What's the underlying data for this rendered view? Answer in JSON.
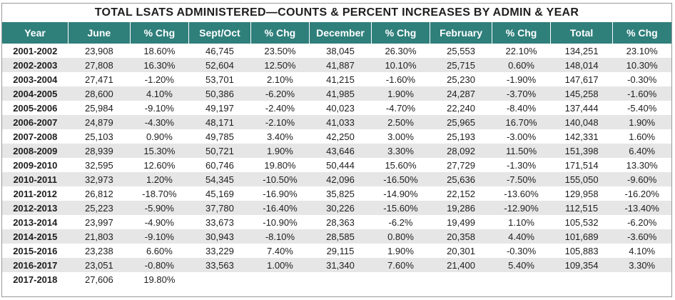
{
  "title": "TOTAL LSATS ADMINISTERED—COUNTS & PERCENT INCREASES BY ADMIN & YEAR",
  "colors": {
    "header_bg": "#2f7f7b",
    "header_text": "#ffffff",
    "stripe": "#e6e6e6"
  },
  "chart_data": {
    "type": "table",
    "title": "TOTAL LSATS ADMINISTERED—COUNTS & PERCENT INCREASES BY ADMIN & YEAR",
    "columns": [
      "Year",
      "June",
      "% Chg",
      "Sept/Oct",
      "% Chg",
      "December",
      "% Chg",
      "February",
      "% Chg",
      "Total",
      "% Chg"
    ],
    "rows": [
      [
        "2001-2002",
        "23,908",
        "18.60%",
        "46,745",
        "23.50%",
        "38,045",
        "26.30%",
        "25,553",
        "22.10%",
        "134,251",
        "23.10%"
      ],
      [
        "2002-2003",
        "27,808",
        "16.30%",
        "52,604",
        "12.50%",
        "41,887",
        "10.10%",
        "25,715",
        "0.60%",
        "148,014",
        "10.30%"
      ],
      [
        "2003-2004",
        "27,471",
        "-1.20%",
        "53,701",
        "2.10%",
        "41,215",
        "-1.60%",
        "25,230",
        "-1.90%",
        "147,617",
        "-0.30%"
      ],
      [
        "2004-2005",
        "28,600",
        "4.10%",
        "50,386",
        "-6.20%",
        "41,985",
        "1.90%",
        "24,287",
        "-3.70%",
        "145,258",
        "-1.60%"
      ],
      [
        "2005-2006",
        "25,984",
        "-9.10%",
        "49,197",
        "-2.40%",
        "40,023",
        "-4.70%",
        "22,240",
        "-8.40%",
        "137,444",
        "-5.40%"
      ],
      [
        "2006-2007",
        "24,879",
        "-4.30%",
        "48,171",
        "-2.10%",
        "41,033",
        "2.50%",
        "25,965",
        "16.70%",
        "140,048",
        "1.90%"
      ],
      [
        "2007-2008",
        "25,103",
        "0.90%",
        "49,785",
        "3.40%",
        "42,250",
        "3.00%",
        "25,193",
        "-3.00%",
        "142,331",
        "1.60%"
      ],
      [
        "2008-2009",
        "28,939",
        "15.30%",
        "50,721",
        "1.90%",
        "43,646",
        "3.30%",
        "28,092",
        "11.50%",
        "151,398",
        "6.40%"
      ],
      [
        "2009-2010",
        "32,595",
        "12.60%",
        "60,746",
        "19.80%",
        "50,444",
        "15.60%",
        "27,729",
        "-1.30%",
        "171,514",
        "13.30%"
      ],
      [
        "2010-2011",
        "32,973",
        "1.20%",
        "54,345",
        "-10.50%",
        "42,096",
        "-16.50%",
        "25,636",
        "-7.50%",
        "155,050",
        "-9.60%"
      ],
      [
        "2011-2012",
        "26,812",
        "-18.70%",
        "45,169",
        "-16.90%",
        "35,825",
        "-14.90%",
        "22,152",
        "-13.60%",
        "129,958",
        "-16.20%"
      ],
      [
        "2012-2013",
        "25,223",
        "-5.90%",
        "37,780",
        "-16.40%",
        "30,226",
        "-15.60%",
        "19,286",
        "-12.90%",
        "112,515",
        "-13.40%"
      ],
      [
        "2013-2014",
        "23,997",
        "-4.90%",
        "33,673",
        "-10.90%",
        "28,363",
        "-6.2%",
        "19,499",
        "1.10%",
        "105,532",
        "-6.20%"
      ],
      [
        "2014-2015",
        "21,803",
        "-9.10%",
        "30,943",
        "-8.10%",
        "28,585",
        "0.80%",
        "20,358",
        "4.40%",
        "101,689",
        "-3.60%"
      ],
      [
        "2015-2016",
        "23,238",
        "6.60%",
        "33,229",
        "7.40%",
        "29,115",
        "1.90%",
        "20,301",
        "-0.30%",
        "105,883",
        "4.10%"
      ],
      [
        "2016-2017",
        "23,051",
        "-0.80%",
        "33,563",
        "1.00%",
        "31,340",
        "7.60%",
        "21,400",
        "5.40%",
        "109,354",
        "3.30%"
      ],
      [
        "2017-2018",
        "27,606",
        "19.80%",
        "",
        "",
        "",
        "",
        "",
        "",
        "",
        ""
      ]
    ]
  }
}
